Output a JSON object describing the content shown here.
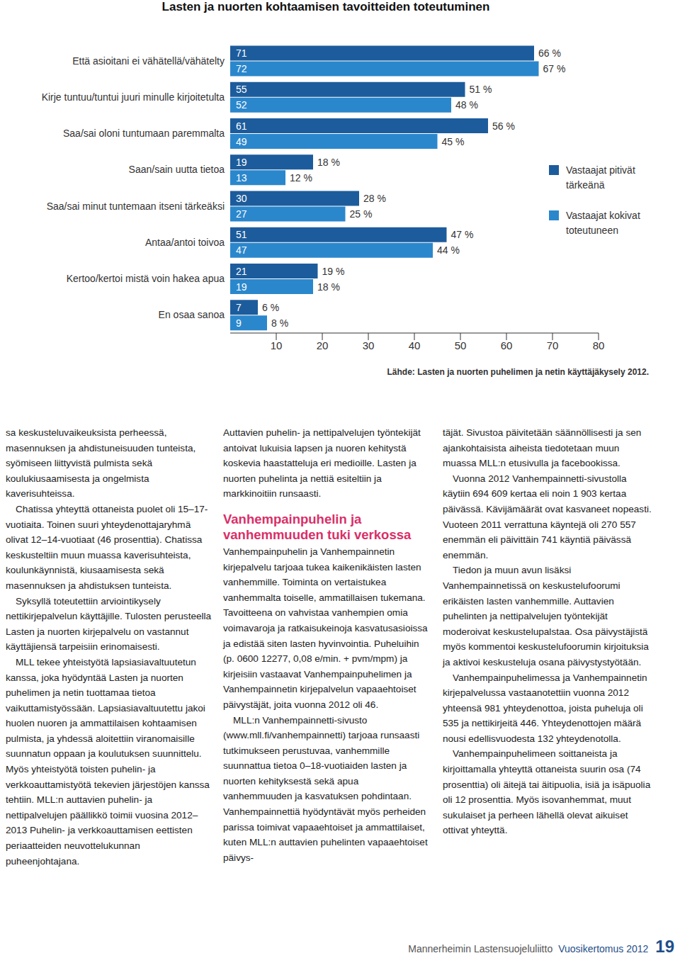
{
  "title": "Lasten ja nuorten kohtaamisen tavoitteiden toteutuminen",
  "chart_data": {
    "type": "bar",
    "orientation": "horizontal",
    "categories": [
      "Että asioitani ei vähätellä/vähätelty",
      "Kirje tuntuu/tuntui juuri minulle kirjoitetulta",
      "Saa/sai oloni tuntumaan paremmalta",
      "Saan/sain uutta tietoa",
      "Saa/sai minut tuntemaan itseni tärkeäksi",
      "Antaa/antoi toivoa",
      "Kertoo/kertoi mistä voin hakea apua",
      "En osaa sanoa"
    ],
    "series": [
      {
        "name": "Vastaajat pitivät tärkeänä",
        "color": "#1d5c9c",
        "values": [
          66,
          51,
          56,
          18,
          28,
          47,
          19,
          6
        ],
        "value_labels": [
          "66 %",
          "51 %",
          "56 %",
          "18 %",
          "28 %",
          "47 %",
          "19 %",
          "6 %"
        ],
        "counts": [
          71,
          55,
          61,
          19,
          30,
          51,
          21,
          7
        ]
      },
      {
        "name": "Vastaajat kokivat toteutuneen",
        "color": "#2b87cc",
        "values": [
          67,
          48,
          45,
          12,
          25,
          44,
          18,
          8
        ],
        "value_labels": [
          "67 %",
          "48 %",
          "45 %",
          "12 %",
          "25 %",
          "44 %",
          "18 %",
          "8 %"
        ],
        "counts": [
          72,
          52,
          49,
          13,
          27,
          47,
          19,
          9
        ]
      }
    ],
    "xlim": [
      0,
      80
    ],
    "xticks": [
      10,
      20,
      30,
      40,
      50,
      60,
      70,
      80
    ],
    "data_labels": true,
    "legend": "right"
  },
  "source": "Lähde: Lasten ja nuorten puhelimen ja netin käyttäjäkysely 2012.",
  "columns": [
    [
      {
        "text": "sa keskusteluvaikeuksista perheessä, masennuksen ja ahdistuneisuuden tunteista, syömiseen liittyvistä pulmista sekä koulukiusaamisesta ja ongelmista kaverisuhteissa."
      },
      {
        "text": "Chatissa yhteyttä ottaneista puolet oli 15–17-vuotiaita. Toinen suuri yhteydenottajaryhmä olivat 12–14-vuotiaat (46 prosenttia). Chatissa keskusteltiin muun muassa kaverisuhteista, koulunkäynnistä, kiusaamisesta sekä masennuksen ja ahdistuksen tunteista."
      },
      {
        "text": "Syksyllä toteutettiin arviointikysely nettikirjepalvelun käyttäjille. Tulosten perusteella Lasten ja nuorten kirjepalvelu on vastannut käyttäjiensä tarpeisiin erinomaisesti."
      },
      {
        "text": "MLL tekee yhteistyötä lapsiasiavaltuutetun kanssa, joka hyödyntää Lasten ja nuorten puhelimen ja netin tuottamaa tietoa vaikuttamistyössään. Lapsiasiavaltuutettu jakoi huolen nuoren ja ammattilaisen kohtaamisen pulmista, ja yhdessä aloitettiin viranomaisille suunnatun oppaan ja koulutuksen suunnittelu. Myös yhteistyötä toisten puhelin- ja verkkoauttamistyötä tekevien järjestöjen kanssa tehtiin. MLL:n auttavien puhelin- ja nettipalvelujen päällikkö toimii vuosina 2012–2013 Puhelin- ja verkkoauttamisen eettisten periaatteiden neuvottelukunnan puheenjohtajana."
      }
    ],
    [
      {
        "text": "Auttavien puhelin- ja nettipalvelujen työntekijät antoivat lukuisia lapsen ja nuoren kehitystä koskevia haastatteluja eri medioille. Lasten ja nuorten puhelinta ja nettiä esiteltiin ja markkinoitiin runsaasti."
      },
      {
        "heading": "Vanhempainpuhelin ja vanhemmuuden tuki verkossa"
      },
      {
        "text": "Vanhempainpuhelin ja Vanhempainnetin kirjepalvelu tarjoaa tukea kaikenikäisten lasten vanhemmille. Toiminta on vertaistukea vanhemmalta toiselle, ammatillaisen tukemana. Tavoitteena on vahvistaa vanhempien omia voimavaroja ja ratkaisukeinoja kasvatusasioissa ja edistää siten lasten hyvinvointia. Puheluihin (p. 0600 12277, 0,08 e/min. + pvm/mpm) ja kirjeisiin vastaavat Vanhempainpuhelimen ja Vanhempainnetin kirjepalvelun vapaaehtoiset päivystäjät, joita vuonna 2012 oli 46."
      },
      {
        "text": "MLL:n Vanhempainnetti-sivusto (www.mll.fi/vanhempainnetti) tarjoaa runsaasti tutkimukseen perustuvaa, vanhemmille suunnattua tietoa 0–18-vuotiaiden lasten ja nuorten kehityksestä sekä apua vanhemmuuden ja kasvatuksen pohdintaan. Vanhempainnettiä hyödyntävät myös perheiden parissa toimivat vapaaehtoiset ja ammattilaiset, kuten MLL:n auttavien puhelinten vapaaehtoiset päivys-"
      }
    ],
    [
      {
        "text": "täjät. Sivustoa päivitetään säännöllisesti ja sen ajankohtaisista aiheista tiedotetaan muun muassa MLL:n etusivulla ja facebookissa."
      },
      {
        "text": "Vuonna 2012 Vanhempainnetti-sivustolla käytiin 694 609 kertaa eli noin 1 903 kertaa päivässä. Kävijämäärät ovat kasvaneet nopeasti. Vuoteen 2011 verrattuna käyntejä oli 270 557 enemmän eli päivittäin 741 käyntiä päivässä enemmän."
      },
      {
        "text": "Tiedon ja muun avun lisäksi Vanhempainnetissä on keskustelufoorumi erikäisten lasten vanhemmille. Auttavien puhelinten ja nettipalvelujen työntekijät moderoivat keskustelupalstaa. Osa päivystäjistä myös kommentoi keskustelufoorumin kirjoituksia ja aktivoi keskusteluja osana päivystystyötään."
      },
      {
        "text": "Vanhempainpuhelimessa ja Vanhempainnetin kirjepalvelussa vastaanotettiin vuonna 2012 yhteensä 981 yhteydenottoa, joista puheluja oli 535 ja nettikirjeitä 446. Yhteydenottojen määrä nousi edellisvuodesta 132 yhteydenotolla."
      },
      {
        "text": "Vanhempainpuhelimeen soittaneista ja kirjoittamalla yhteyttä ottaneista suurin osa (74 prosenttia) oli äitejä tai äitipuolia, isiä ja isäpuolia oli 12 prosenttia. Myös isovanhemmat, muut sukulaiset ja perheen lähellä olevat aikuiset ottivat yhteyttä."
      }
    ]
  ],
  "footer": {
    "organization": "Mannerheimin Lastensuojeluliitto",
    "publication": "Vuosikertomus 2012",
    "page": 19
  }
}
